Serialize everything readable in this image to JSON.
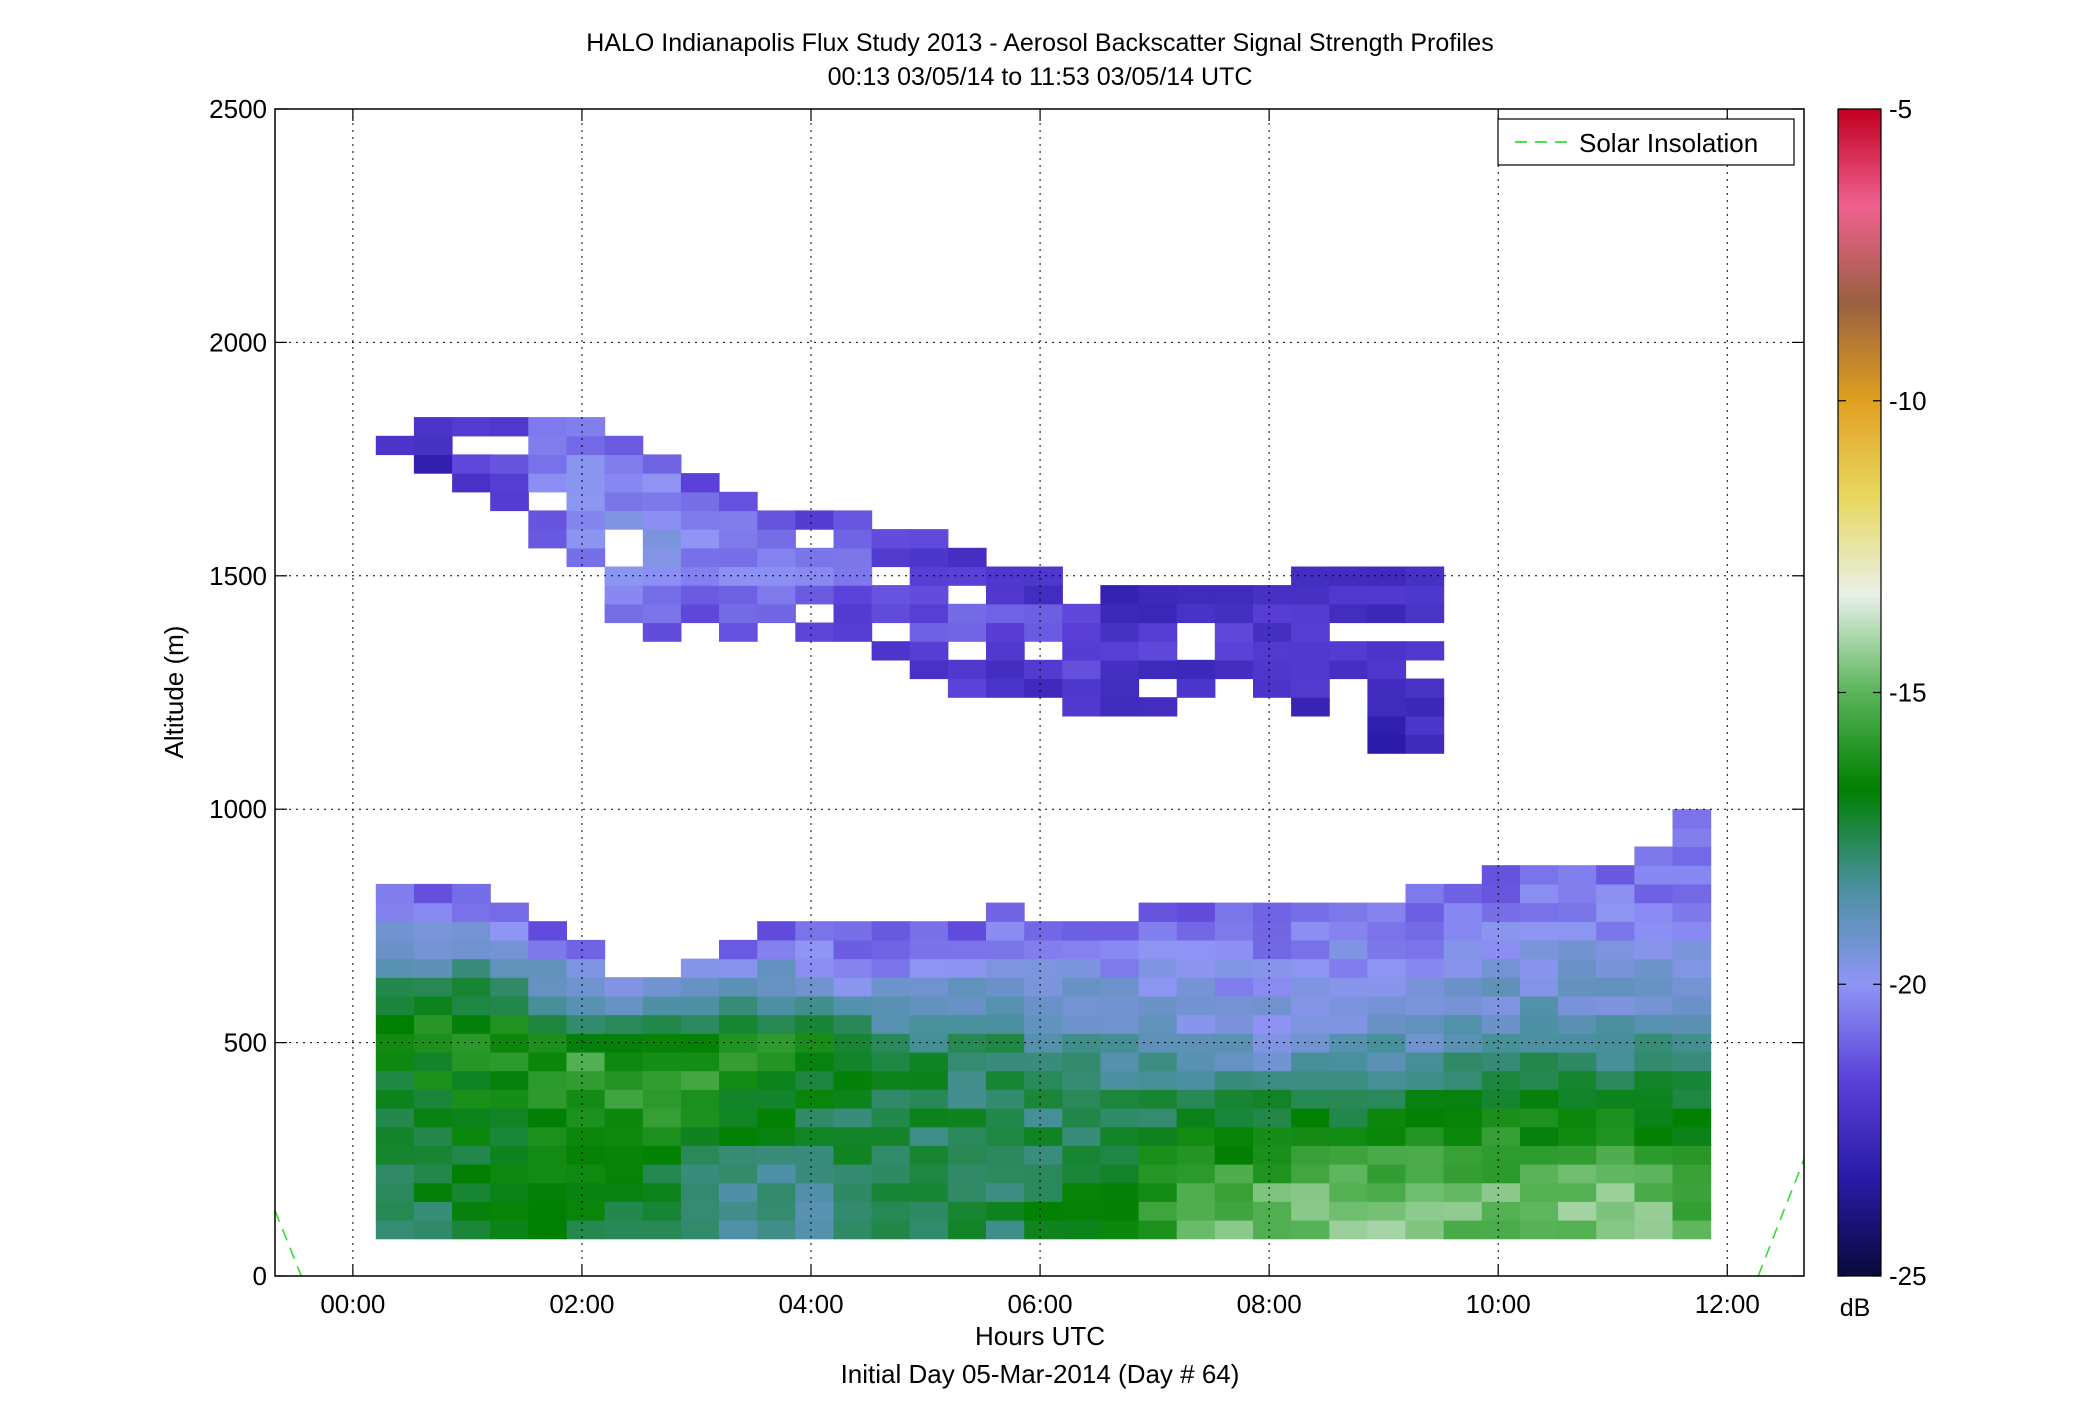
{
  "chart_data": {
    "type": "heatmap",
    "title": "HALO Indianapolis Flux Study 2013 - Aerosol Backscatter Signal Strength Profiles",
    "subtitle": "00:13 03/05/14 to 11:53 03/05/14  UTC",
    "xlabel": "Hours UTC",
    "xlabel2": "Initial Day 05-Mar-2014 (Day # 64)",
    "ylabel": "Altitude (m)",
    "xlim": [
      -0.68,
      12.67
    ],
    "ylim": [
      0,
      2500
    ],
    "x_ticks": [
      0,
      2,
      4,
      6,
      8,
      10,
      12
    ],
    "x_tick_labels": [
      "00:00",
      "02:00",
      "04:00",
      "06:00",
      "08:00",
      "10:00",
      "12:00"
    ],
    "y_ticks": [
      0,
      500,
      1000,
      1500,
      2000,
      2500
    ],
    "y_tick_labels": [
      "0",
      "500",
      "1000",
      "1500",
      "2000",
      "2500"
    ],
    "grid": true,
    "legend": {
      "placement": "top-right",
      "entries": [
        "Solar Insolation"
      ]
    },
    "colorbar": {
      "label": "dB",
      "range": [
        -25,
        -5
      ],
      "ticks": [
        -25,
        -20,
        -15,
        -10,
        -5
      ],
      "tick_labels": [
        "-25",
        "-20",
        "-15",
        "-10",
        "-5"
      ],
      "colors": [
        "#0a0a3a",
        "#2a1aa8",
        "#5a40d8",
        "#8f95f5",
        "#4a90a0",
        "#008000",
        "#5ab45a",
        "#e8f0e8",
        "#e8d860",
        "#e0a020",
        "#9a6040",
        "#f06090",
        "#c00020"
      ]
    },
    "cell_size": {
      "hours": 0.333,
      "meters": 40
    },
    "layers": [
      {
        "name": "upper aerosol layer",
        "x": [
          0.33,
          1.0,
          1.67,
          2.33,
          3.0,
          3.67,
          4.33,
          5.0,
          5.67,
          6.33,
          7.0,
          7.67,
          8.33,
          9.0
        ],
        "top_m": [
          1790,
          1840,
          1840,
          1750,
          1690,
          1610,
          1610,
          1560,
          1490,
          1460,
          1450,
          1450,
          1490,
          1490
        ],
        "bottom_m": [
          1750,
          1650,
          1560,
          1360,
          1370,
          1340,
          1340,
          1250,
          1260,
          1160,
          1230,
          1250,
          1210,
          1110
        ],
        "dB": [
          -21.8,
          -21.5,
          -19.8,
          -19.8,
          -20.5,
          -20.5,
          -21.0,
          -21.2,
          -21.2,
          -21.8,
          -21.8,
          -22.0,
          -21.8,
          -22.0
        ]
      },
      {
        "name": "boundary layer",
        "x": [
          0.33,
          1.0,
          1.67,
          2.33,
          3.0,
          3.67,
          4.33,
          5.0,
          5.67,
          6.33,
          7.0,
          7.67,
          8.33,
          9.0,
          9.67,
          10.33,
          11.0,
          11.67
        ],
        "top_m": [
          840,
          800,
          720,
          610,
          690,
          730,
          730,
          730,
          770,
          730,
          770,
          770,
          800,
          800,
          840,
          880,
          880,
          990
        ],
        "bottom_m": [
          80,
          80,
          80,
          80,
          80,
          80,
          80,
          80,
          80,
          80,
          80,
          80,
          80,
          80,
          80,
          80,
          80,
          80
        ],
        "surface_dB": [
          -17.5,
          -17.2,
          -16.8,
          -17.5,
          -18.0,
          -18.5,
          -17.5,
          -17.5,
          -17.5,
          -16.5,
          -15.3,
          -14.8,
          -14.5,
          -14.5,
          -14.8,
          -14.8,
          -14.5,
          -15.5
        ],
        "mid_dB": [
          -16.5,
          -16.3,
          -15.8,
          -15.5,
          -15.8,
          -16.0,
          -17.5,
          -17.5,
          -18.0,
          -18.5,
          -19.0,
          -19.5,
          -19.5,
          -19.2,
          -19.0,
          -19.0,
          -19.2,
          -19.2
        ],
        "top_dB": [
          -21.5,
          -21.3,
          -21.5,
          -20.5,
          -21.0,
          -21.2,
          -21.5,
          -21.3,
          -21.0,
          -21.0,
          -21.2,
          -21.0,
          -20.5,
          -21.0,
          -21.0,
          -21.0,
          -21.2,
          -21.3
        ]
      }
    ],
    "solar_insolation": [
      {
        "x": [
          -0.68,
          -0.45
        ],
        "y": [
          140,
          0
        ]
      },
      {
        "x": [
          12.27,
          12.67
        ],
        "y": [
          0,
          250
        ]
      }
    ]
  }
}
